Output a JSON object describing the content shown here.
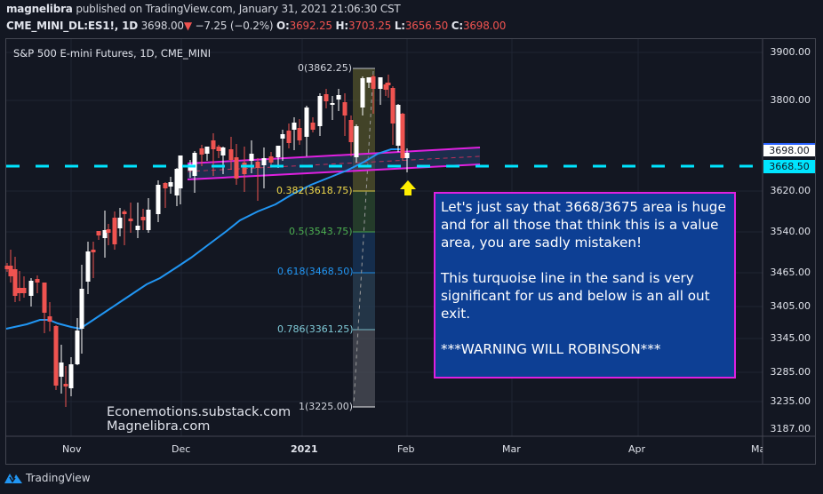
{
  "header": {
    "author": "magnelibra",
    "published_text": " published on TradingView.com, January 31, 2021 21:06:30 CST",
    "symbol": "CME_MINI_DL:ES1!, 1D",
    "last": "3698.00",
    "change_arrow": "▼",
    "change": "−7.25 (−0.2%)",
    "o_label": "O:",
    "o": "3692.25",
    "h_label": "H:",
    "h": "3703.25",
    "l_label": "L:",
    "l": "3656.50",
    "c_label": "C:",
    "c": "3698.00"
  },
  "chart": {
    "title": "S&P 500 E-mini Futures, 1D, CME_MINI",
    "price_axis": [
      "3900.00",
      "3800.00",
      "3620.00",
      "3540.00",
      "3465.00",
      "3405.00",
      "3345.00",
      "3285.00",
      "3235.00",
      "3187.00"
    ],
    "last_price_badge": "3698.00",
    "line_badge": "3668.50",
    "time_axis": [
      "Nov",
      "Dec",
      "2021",
      "Feb",
      "Mar",
      "Apr",
      "Ma"
    ],
    "fib_levels": [
      {
        "label": "0(3862.25)",
        "color": "#d1d4dc"
      },
      {
        "label": "0.382(3618.75)",
        "color": "#f0d94a"
      },
      {
        "label": "0.5(3543.75)",
        "color": "#4caf50"
      },
      {
        "label": "0.618(3468.50)",
        "color": "#2196f3"
      },
      {
        "label": "0.786(3361.25)",
        "color": "#80cbd8"
      },
      {
        "label": "1(3225.00)",
        "color": "#d1d4dc"
      }
    ],
    "horizontal_line_color": "#00e5ff",
    "channel_color": "#e020e0",
    "ma_color": "#2196f3",
    "up_color": "#ffffff",
    "down_color": "#ef5350"
  },
  "annotation": {
    "text": "Let's just say that 3668/3675 area is huge and for all those that think this is a value area, you are sadly mistaken!\n\nThis turquoise line in the sand is very significant for us and below is an all out exit.\n\n***WARNING WILL ROBINSON***"
  },
  "watermark": {
    "line1": "Econemotions.substack.com",
    "line2": "Magnelibra.com"
  },
  "footer": {
    "brand": "TradingView"
  },
  "chart_data": {
    "type": "candlestick",
    "title": "S&P 500 E-mini Futures, 1D, CME_MINI",
    "ylim": [
      3187,
      3900
    ],
    "yticks": [
      3900,
      3800,
      3620,
      3540,
      3465,
      3405,
      3345,
      3285,
      3235,
      3187
    ],
    "xticks": [
      "Nov",
      "Dec",
      "2021",
      "Feb",
      "Mar",
      "Apr",
      "May"
    ],
    "horizontal_line": 3668.5,
    "fib_retracement": {
      "0": 3862.25,
      "0.382": 3618.75,
      "0.5": 3543.75,
      "0.618": 3468.5,
      "0.786": 3361.25,
      "1": 3225.0
    },
    "last": {
      "open": 3692.25,
      "high": 3703.25,
      "low": 3656.5,
      "close": 3698.0
    }
  }
}
